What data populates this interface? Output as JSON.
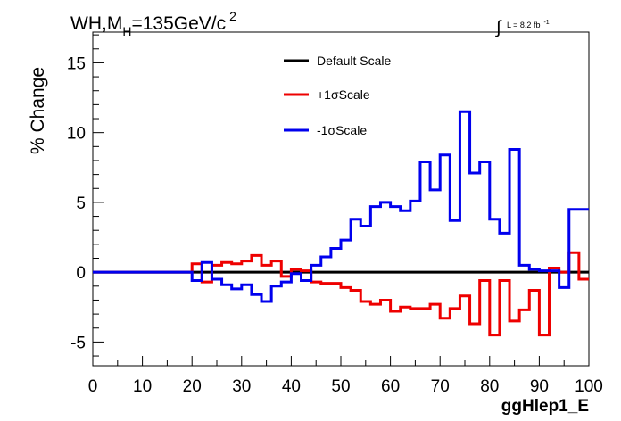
{
  "title": {
    "main": "WH,M",
    "subscript": "H",
    "rest": "=135GeV/c",
    "superscript": "2"
  },
  "lumi": {
    "integral": "∫",
    "text": "L = 8.2 fb",
    "superscript": "-1"
  },
  "chart_data": {
    "type": "line",
    "xlabel": "ggHlep1_E",
    "ylabel": "% Change",
    "xlim": [
      0,
      100
    ],
    "ylim": [
      -6.7,
      17.2
    ],
    "x_ticks": [
      0,
      10,
      20,
      30,
      40,
      50,
      60,
      70,
      80,
      90,
      100
    ],
    "y_ticks": [
      -5,
      0,
      5,
      10,
      15
    ],
    "grid": false,
    "legend_position": "top-center",
    "bin_edges": [
      0,
      2,
      4,
      6,
      8,
      10,
      12,
      14,
      16,
      18,
      20,
      22,
      24,
      26,
      28,
      30,
      32,
      34,
      36,
      38,
      40,
      42,
      44,
      46,
      48,
      50,
      52,
      54,
      56,
      58,
      60,
      62,
      64,
      66,
      68,
      70,
      72,
      74,
      76,
      78,
      80,
      82,
      84,
      86,
      88,
      90,
      92,
      94,
      96,
      98,
      100
    ],
    "series": [
      {
        "name": "Default Scale",
        "color": "#000000",
        "values": [
          0,
          0,
          0,
          0,
          0,
          0,
          0,
          0,
          0,
          0,
          0,
          0,
          0,
          0,
          0,
          0,
          0,
          0,
          0,
          0,
          0,
          0,
          0,
          0,
          0,
          0,
          0,
          0,
          0,
          0,
          0,
          0,
          0,
          0,
          0,
          0,
          0,
          0,
          0,
          0,
          0,
          0,
          0,
          0,
          0,
          0,
          0,
          0,
          0,
          0
        ]
      },
      {
        "name": "+1σScale",
        "color": "#ee0000",
        "values": [
          0,
          0,
          0,
          0,
          0,
          0,
          0,
          0,
          0,
          0,
          0.6,
          -0.7,
          0.5,
          0.7,
          0.6,
          0.8,
          1.2,
          0.5,
          0.8,
          -0.3,
          0.2,
          0.1,
          -0.7,
          -0.8,
          -0.8,
          -1.1,
          -1.3,
          -2.1,
          -2.3,
          -2.0,
          -2.8,
          -2.5,
          -2.6,
          -2.6,
          -2.3,
          -3.3,
          -2.6,
          -1.7,
          -3.7,
          -0.6,
          -4.5,
          -0.6,
          -3.5,
          -2.7,
          -1.3,
          -4.5,
          0.3,
          0.0,
          1.4,
          -0.5
        ]
      },
      {
        "name": "-1σScale",
        "color": "#0000ee",
        "values": [
          0,
          0,
          0,
          0,
          0,
          0,
          0,
          0,
          0,
          0,
          -0.6,
          0.7,
          -0.5,
          -0.9,
          -1.2,
          -0.9,
          -1.6,
          -2.1,
          -1.0,
          -0.7,
          -0.1,
          -0.6,
          0.5,
          1.1,
          1.7,
          2.3,
          3.8,
          3.3,
          4.7,
          5.0,
          4.7,
          4.4,
          5.1,
          7.9,
          5.9,
          8.4,
          3.7,
          11.5,
          7.1,
          7.9,
          3.8,
          2.8,
          8.8,
          0.5,
          0.2,
          0.1,
          0.1,
          -1.1,
          4.5,
          4.5
        ]
      }
    ]
  }
}
